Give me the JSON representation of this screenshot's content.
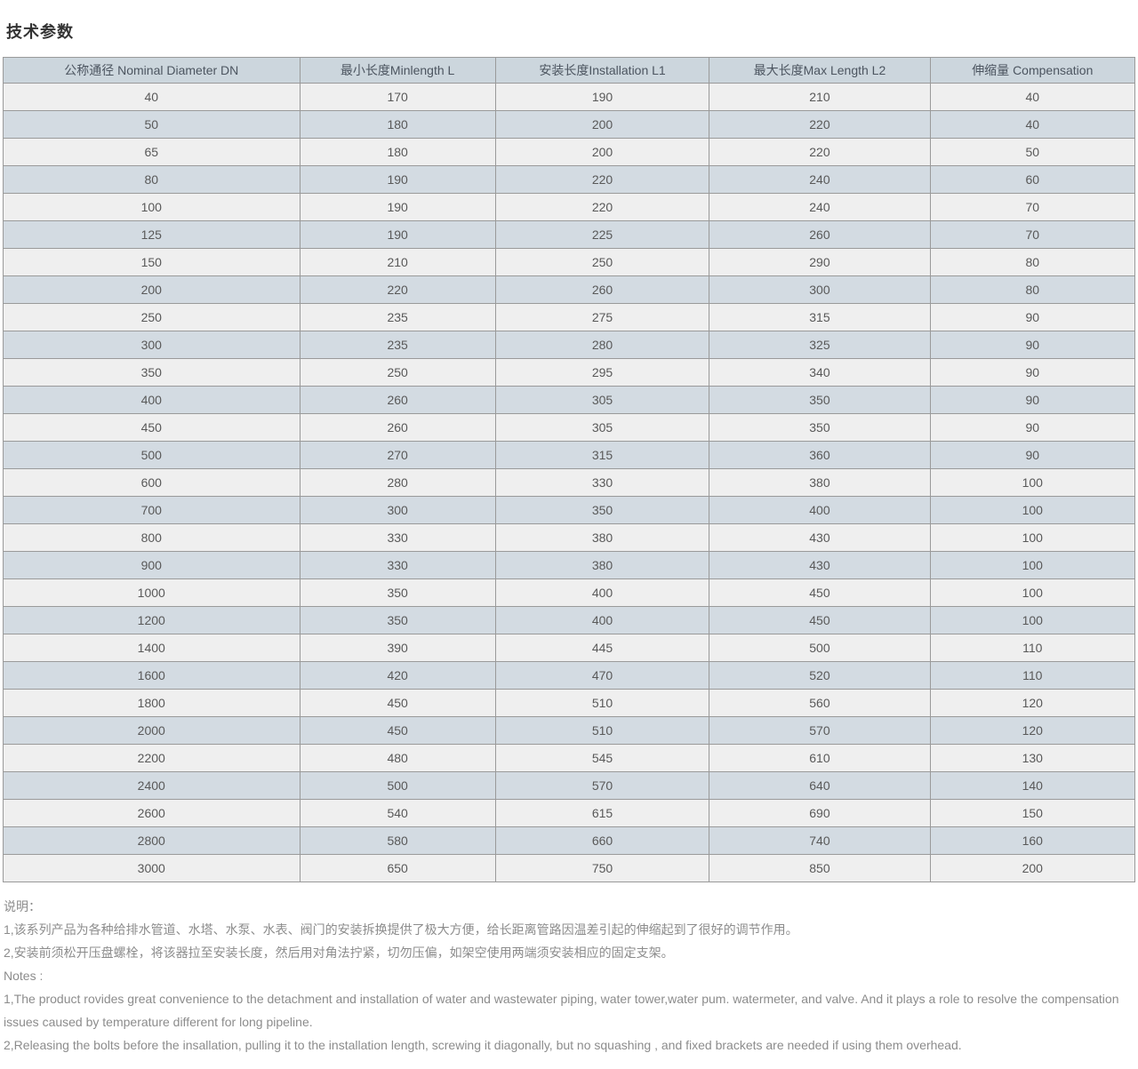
{
  "page": {
    "title": "技术参数"
  },
  "table": {
    "columns": [
      "公称通径 Nominal Diameter DN",
      "最小长度Minlength L",
      "安装长度Installation L1",
      "最大长度Max Length L2",
      "伸缩量 Compensation"
    ],
    "rows": [
      [
        "40",
        "170",
        "190",
        "210",
        "40"
      ],
      [
        "50",
        "180",
        "200",
        "220",
        "40"
      ],
      [
        "65",
        "180",
        "200",
        "220",
        "50"
      ],
      [
        "80",
        "190",
        "220",
        "240",
        "60"
      ],
      [
        "100",
        "190",
        "220",
        "240",
        "70"
      ],
      [
        "125",
        "190",
        "225",
        "260",
        "70"
      ],
      [
        "150",
        "210",
        "250",
        "290",
        "80"
      ],
      [
        "200",
        "220",
        "260",
        "300",
        "80"
      ],
      [
        "250",
        "235",
        "275",
        "315",
        "90"
      ],
      [
        "300",
        "235",
        "280",
        "325",
        "90"
      ],
      [
        "350",
        "250",
        "295",
        "340",
        "90"
      ],
      [
        "400",
        "260",
        "305",
        "350",
        "90"
      ],
      [
        "450",
        "260",
        "305",
        "350",
        "90"
      ],
      [
        "500",
        "270",
        "315",
        "360",
        "90"
      ],
      [
        "600",
        "280",
        "330",
        "380",
        "100"
      ],
      [
        "700",
        "300",
        "350",
        "400",
        "100"
      ],
      [
        "800",
        "330",
        "380",
        "430",
        "100"
      ],
      [
        "900",
        "330",
        "380",
        "430",
        "100"
      ],
      [
        "1000",
        "350",
        "400",
        "450",
        "100"
      ],
      [
        "1200",
        "350",
        "400",
        "450",
        "100"
      ],
      [
        "1400",
        "390",
        "445",
        "500",
        "110"
      ],
      [
        "1600",
        "420",
        "470",
        "520",
        "110"
      ],
      [
        "1800",
        "450",
        "510",
        "560",
        "120"
      ],
      [
        "2000",
        "450",
        "510",
        "570",
        "120"
      ],
      [
        "2200",
        "480",
        "545",
        "610",
        "130"
      ],
      [
        "2400",
        "500",
        "570",
        "640",
        "140"
      ],
      [
        "2600",
        "540",
        "615",
        "690",
        "150"
      ],
      [
        "2800",
        "580",
        "660",
        "740",
        "160"
      ],
      [
        "3000",
        "650",
        "750",
        "850",
        "200"
      ]
    ]
  },
  "notes": {
    "zh_title": "说明：",
    "zh_items": [
      "1,该系列产品为各种给排水管道、水塔、水泵、水表、阀门的安装拆换提供了极大方便，给长距离管路因温差引起的伸缩起到了很好的调节作用。",
      "2,安装前须松开压盘螺栓，将该器拉至安装长度，然后用对角法拧紧，切勿压偏，如架空使用两端须安装相应的固定支架。"
    ],
    "en_title": "Notes :",
    "en_items": [
      "1,The product rovides great convenience to the detachment and installation of water and wastewater piping, water tower,water pum. watermeter, and valve. And it plays a role to resolve the compensation issues caused by temperature different for long pipeline.",
      "2,Releasing the bolts before the insallation, pulling it to the installation length, screwing it diagonally, but no squashing , and fixed brackets are needed if using them overhead."
    ]
  },
  "colors": {
    "header_bg": "#ccd6dd",
    "row_light_bg": "#efefef",
    "row_dark_bg": "#d3dbe2",
    "border": "#9a9a9a",
    "cell_text": "#595959",
    "title_text": "#333333",
    "note_text": "#8c8c8c"
  }
}
